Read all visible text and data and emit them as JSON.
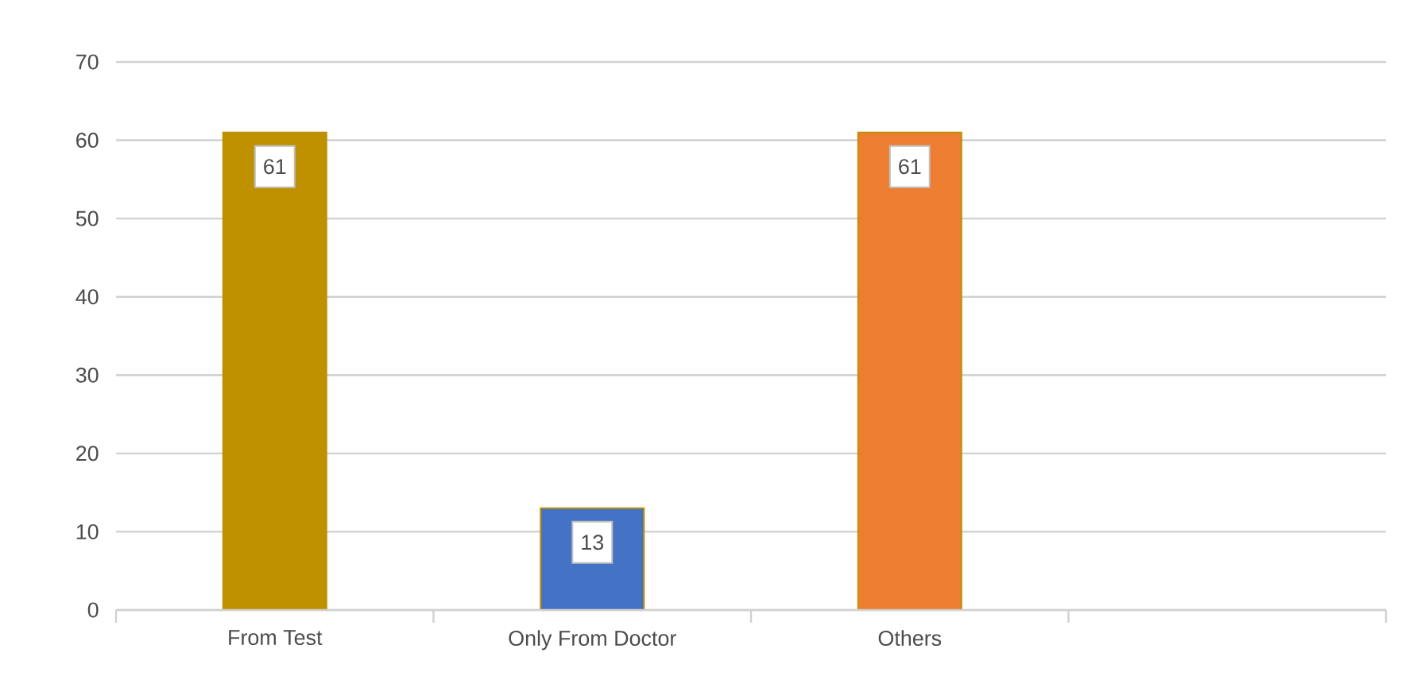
{
  "chart_data": {
    "type": "bar",
    "categories": [
      "From Test",
      "Only From Doctor",
      "Others",
      null
    ],
    "values": [
      61,
      13,
      61,
      null
    ],
    "colors": [
      "#bf9000",
      "#4472c4",
      "#ed7d31",
      null
    ],
    "ylim": [
      0,
      70
    ],
    "yticks": [
      0,
      10,
      20,
      30,
      40,
      50,
      60,
      70
    ],
    "grid": "y",
    "data_labels": true
  }
}
